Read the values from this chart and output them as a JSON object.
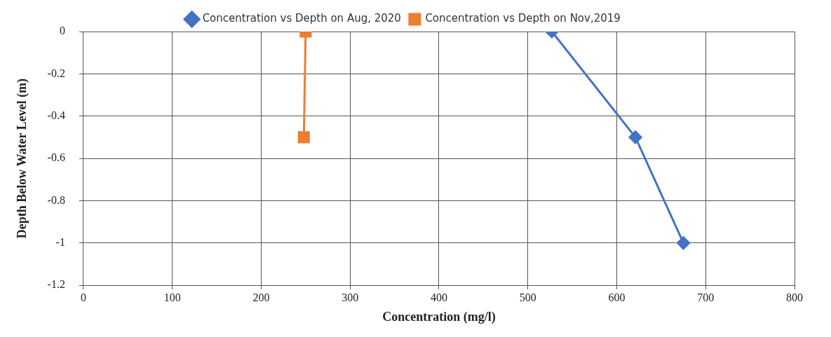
{
  "chart_data": {
    "type": "line",
    "xlabel": "Concentration (mg/l)",
    "ylabel": "Depth Below Water Level (m)",
    "xlim": [
      0,
      800
    ],
    "xticks": [
      0,
      100,
      200,
      300,
      400,
      500,
      600,
      700,
      800
    ],
    "ylim": [
      -1.2,
      0
    ],
    "yticks": [
      0,
      -0.2,
      -0.4,
      -0.6,
      -0.8,
      -1,
      -1.2
    ],
    "grid": true,
    "legend": "top",
    "line_style": "solid",
    "series": [
      {
        "name": "Concentration vs Depth on Aug, 2020",
        "color": "#4472c4",
        "marker": "diamond",
        "x": [
          527,
          621,
          675
        ],
        "values": [
          0,
          -0.5,
          -1
        ]
      },
      {
        "name": "Concentration vs Depth on Nov,2019",
        "color": "#ed7d31",
        "marker": "square",
        "x": [
          250,
          248
        ],
        "values": [
          0,
          -0.5
        ]
      }
    ]
  }
}
